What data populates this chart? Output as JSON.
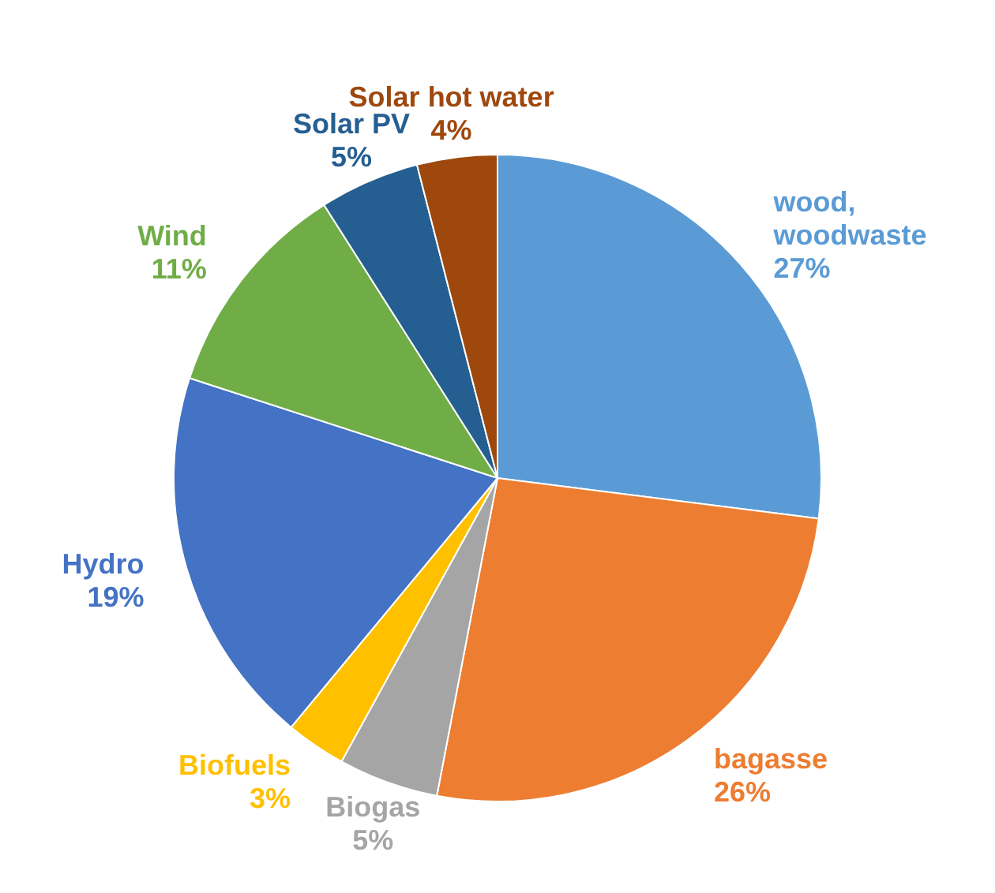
{
  "chart_data": {
    "type": "pie",
    "categories": [
      "wood, woodwaste",
      "bagasse",
      "Biogas",
      "Biofuels",
      "Hydro",
      "Wind",
      "Solar PV",
      "Solar hot water"
    ],
    "values": [
      27,
      26,
      5,
      3,
      19,
      11,
      5,
      4
    ],
    "value_labels": [
      "27%",
      "26%",
      "5%",
      "3%",
      "19%",
      "11%",
      "5%",
      "4%"
    ],
    "colors": [
      "#5b9bd5",
      "#ed7d31",
      "#a5a5a5",
      "#ffc000",
      "#4472c4",
      "#70ad47",
      "#255e91",
      "#9e480e"
    ]
  }
}
